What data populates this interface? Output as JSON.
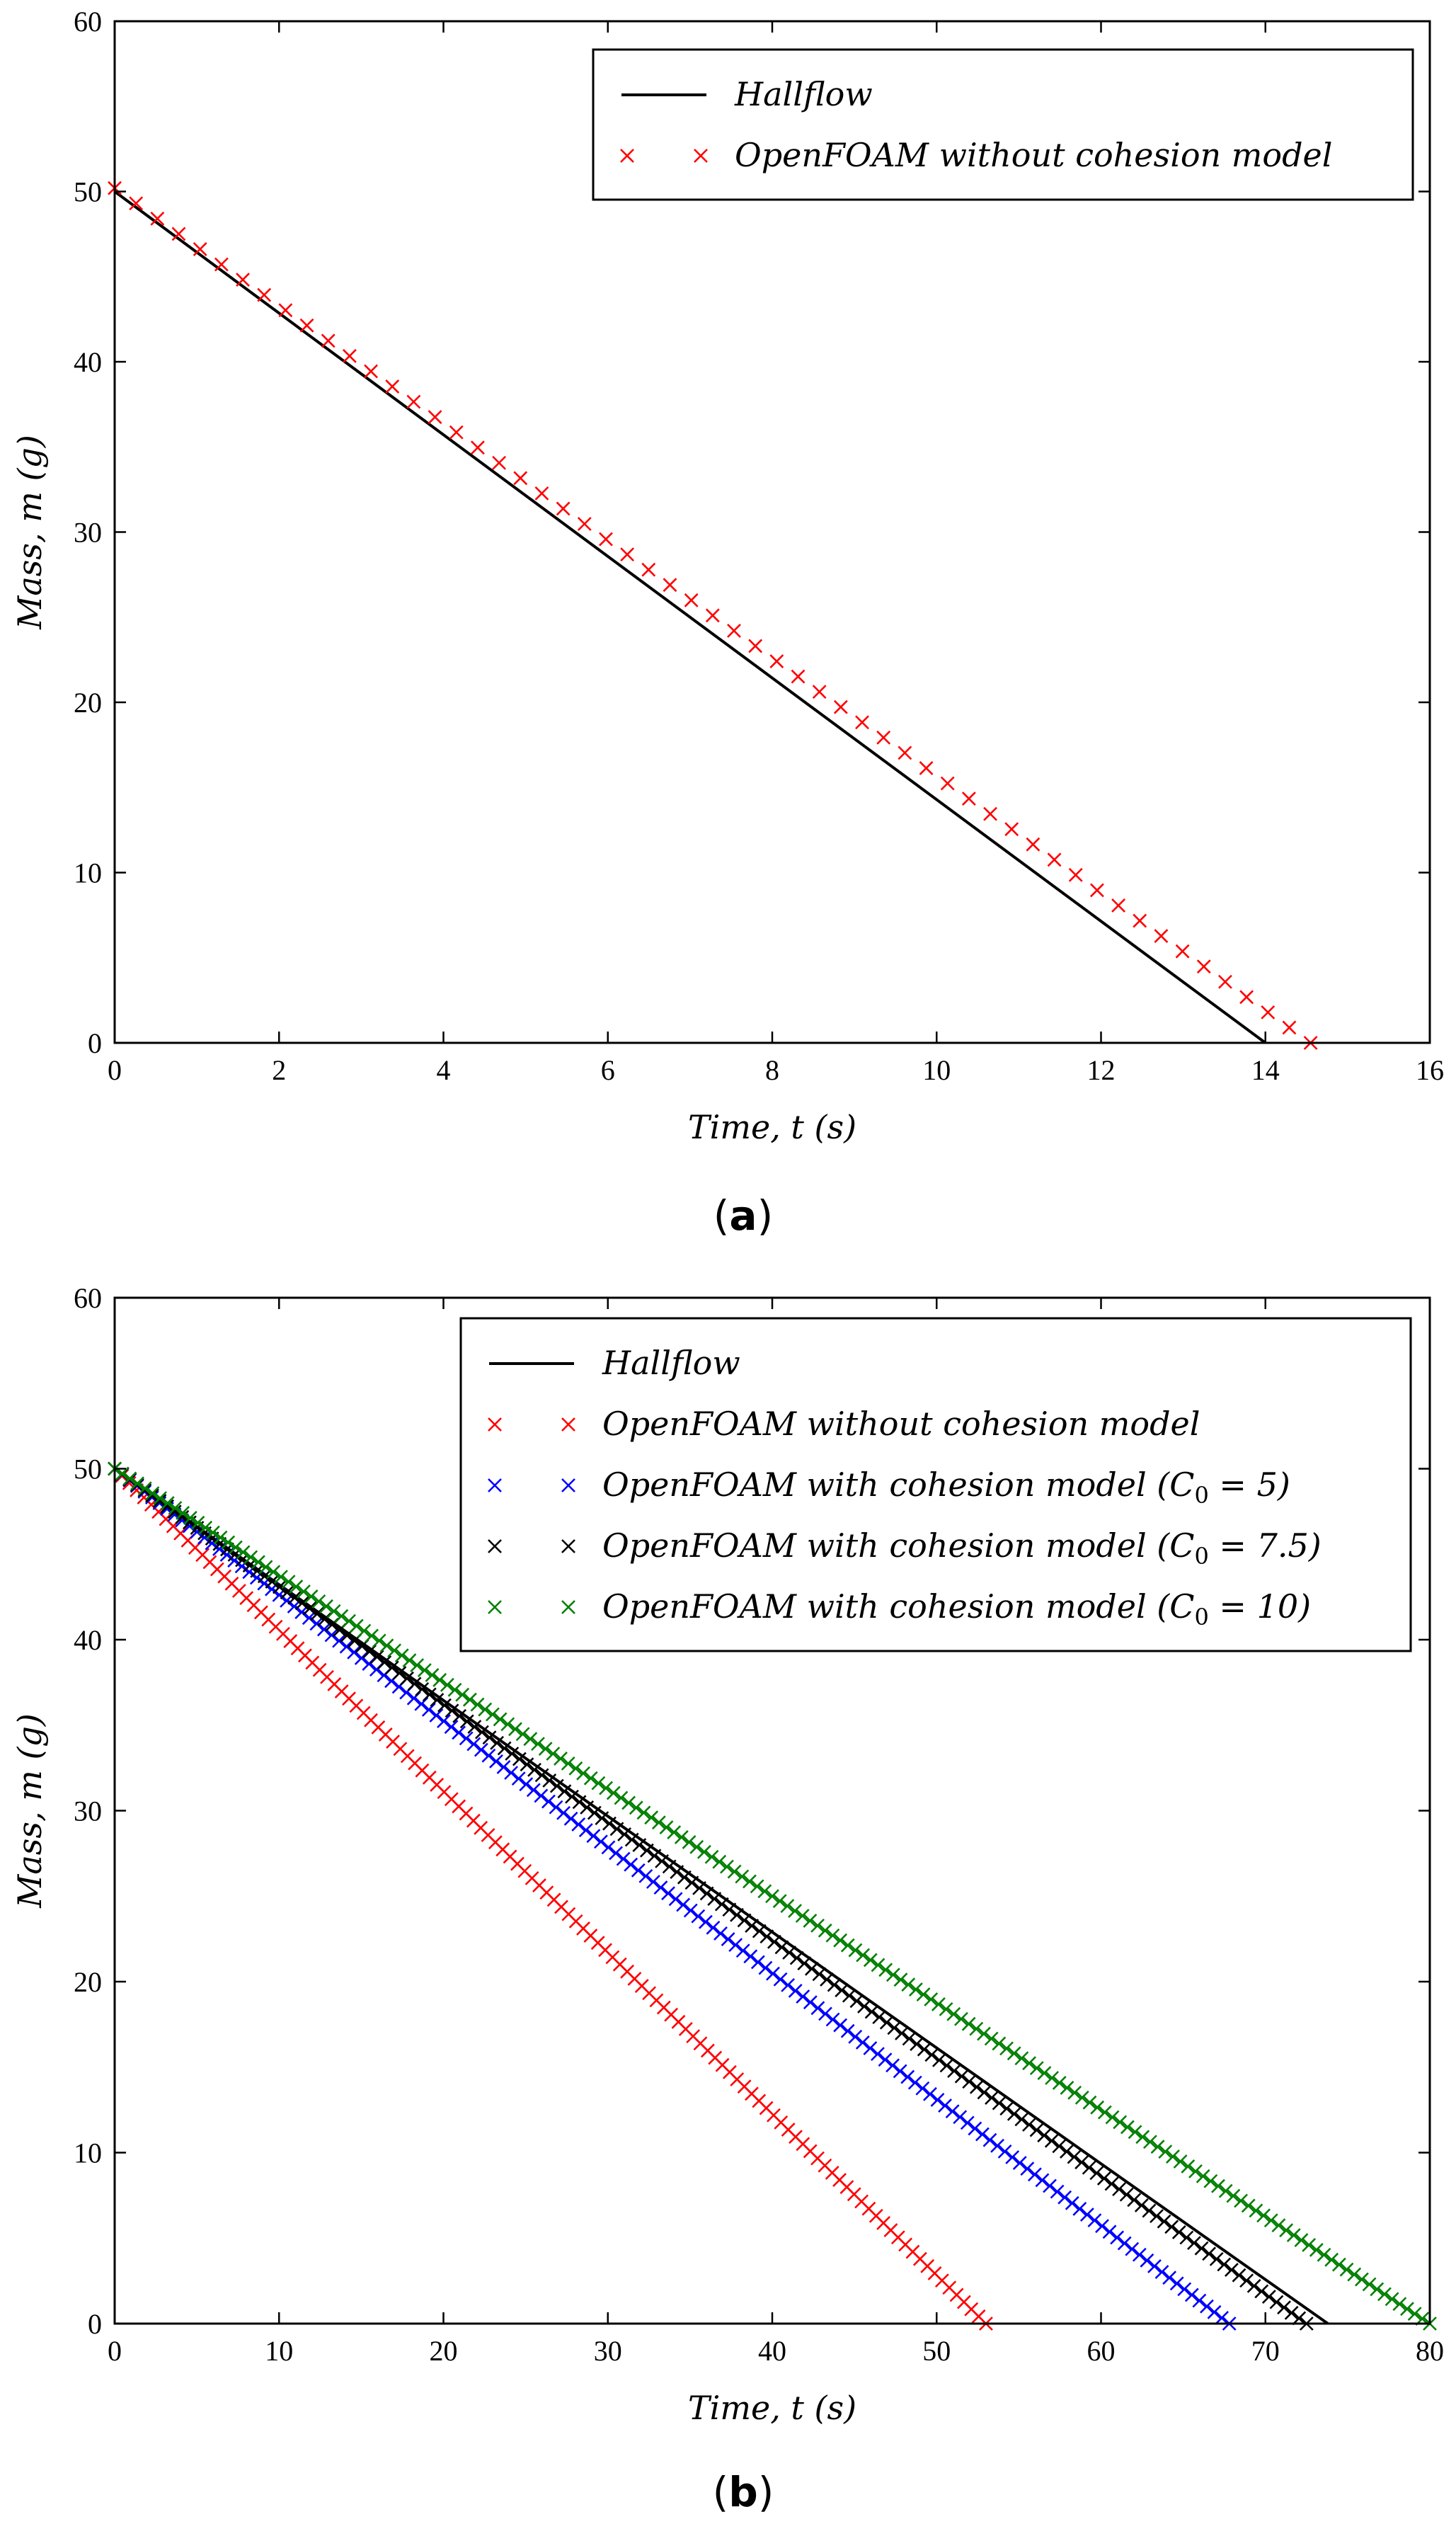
{
  "chart_data": [
    {
      "type": "line",
      "panel": "a",
      "caption": {
        "open": "(",
        "letter": "a",
        "close": ")"
      },
      "title": "",
      "xlabel": "Time, t (s)",
      "ylabel": "Mass, m (g)",
      "xlim": [
        0,
        16
      ],
      "ylim": [
        0,
        60
      ],
      "xticks": [
        0,
        2,
        4,
        6,
        8,
        10,
        12,
        14,
        16
      ],
      "yticks": [
        0,
        10,
        20,
        30,
        40,
        50,
        60
      ],
      "grid": false,
      "legend_position": "top-right",
      "series": [
        {
          "name": "Hallflow",
          "style": "line",
          "color": "#000000",
          "x": [
            0,
            14
          ],
          "y": [
            50,
            0
          ]
        },
        {
          "name": "OpenFOAM without cohesion model",
          "style": "x-marker",
          "color": "#ff0000",
          "x_start": 0,
          "x_end": 14.55,
          "y_start": 50.2,
          "y_end": 0,
          "n_points": 57
        }
      ]
    },
    {
      "type": "line",
      "panel": "b",
      "caption": {
        "open": "(",
        "letter": "b",
        "close": ")"
      },
      "title": "",
      "xlabel": "Time, t (s)",
      "ylabel": "Mass, m (g)",
      "xlim": [
        0,
        80
      ],
      "ylim": [
        0,
        60
      ],
      "xticks": [
        0,
        10,
        20,
        30,
        40,
        50,
        60,
        70,
        80
      ],
      "yticks": [
        0,
        10,
        20,
        30,
        40,
        50,
        60
      ],
      "grid": false,
      "legend_position": "top-right",
      "series": [
        {
          "name": "Hallflow",
          "style": "line",
          "color": "#000000",
          "x": [
            0,
            73.8
          ],
          "y": [
            50,
            0
          ]
        },
        {
          "name": "OpenFOAM without cohesion model",
          "style": "x-marker",
          "color": "#ff0000",
          "x_start": 0,
          "x_end": 53,
          "y_start": 50,
          "y_end": 0,
          "n_points": 120
        },
        {
          "name": "OpenFOAM with cohesion model (C0 = 5)",
          "style": "x-marker",
          "color": "#0000ff",
          "x_start": 0,
          "x_end": 67.8,
          "y_start": 50,
          "y_end": 0,
          "n_points": 150
        },
        {
          "name": "OpenFOAM with cohesion model (C0 = 7.5)",
          "style": "x-marker",
          "color": "#000000",
          "x_start": 0,
          "x_end": 72.5,
          "y_start": 50,
          "y_end": 0,
          "n_points": 160
        },
        {
          "name": "OpenFOAM with cohesion model (C0 = 10)",
          "style": "x-marker",
          "color": "#008000",
          "x_start": 0,
          "x_end": 80,
          "y_start": 50,
          "y_end": 0,
          "n_points": 175
        }
      ]
    }
  ],
  "legend_text": {
    "a": [
      {
        "name": "Hallflow"
      },
      {
        "name": "OpenFOAM without cohesion model"
      }
    ],
    "b": [
      {
        "name": "Hallflow"
      },
      {
        "name": "OpenFOAM without cohesion model"
      },
      {
        "name": "OpenFOAM with cohesion model (",
        "sym": "C",
        "sub": "0",
        "rest": " = 5)"
      },
      {
        "name": "OpenFOAM with cohesion model (",
        "sym": "C",
        "sub": "0",
        "rest": " = 7.5)"
      },
      {
        "name": "OpenFOAM with cohesion model (",
        "sym": "C",
        "sub": "0",
        "rest": " = 10)"
      }
    ]
  }
}
